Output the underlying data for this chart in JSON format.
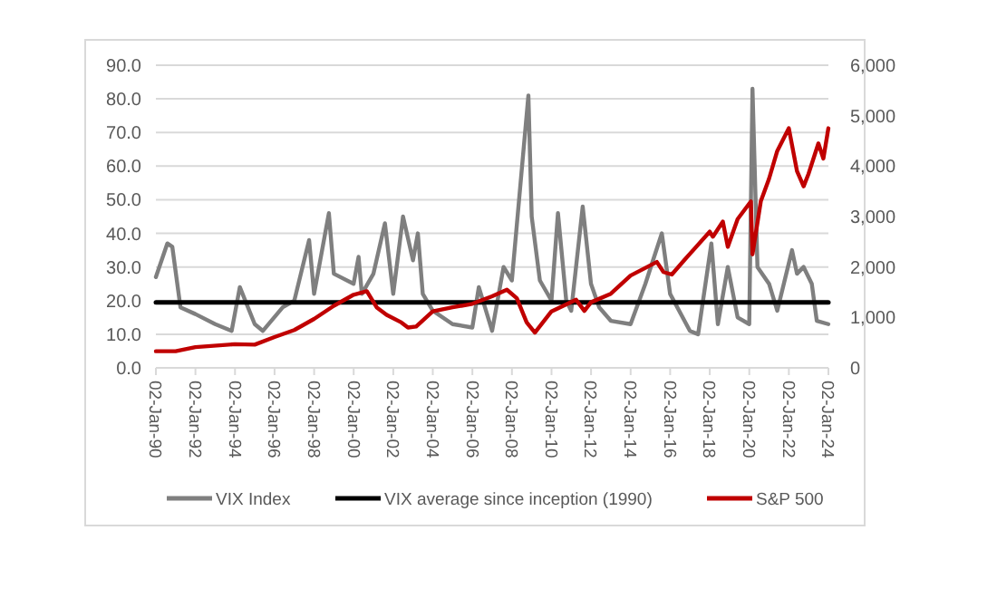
{
  "chart_data": {
    "type": "line",
    "x": [
      "1990-01-02",
      "1990-08",
      "1990-11",
      "1991-04",
      "1992-01",
      "1993-01",
      "1993-11",
      "1994-04",
      "1995-01",
      "1995-06",
      "1996-06",
      "1997-01",
      "1997-10",
      "1998-01",
      "1998-10",
      "1999-01",
      "2000-01",
      "2000-04",
      "2000-06",
      "2001-01",
      "2001-08",
      "2002-01",
      "2002-07",
      "2003-01",
      "2003-04",
      "2003-07",
      "2004-01",
      "2005-01",
      "2006-01",
      "2006-05",
      "2007-01",
      "2007-08",
      "2008-01",
      "2008-11",
      "2009-01",
      "2009-06",
      "2010-01",
      "2010-05",
      "2010-10",
      "2011-01",
      "2011-08",
      "2012-01",
      "2012-06",
      "2013-01",
      "2014-01",
      "2014-10",
      "2015-08",
      "2016-01",
      "2017-01",
      "2017-06",
      "2018-02",
      "2018-06",
      "2018-12",
      "2019-06",
      "2020-01",
      "2020-03",
      "2020-06",
      "2021-01",
      "2021-06",
      "2022-03",
      "2022-06",
      "2022-10",
      "2023-03",
      "2023-06",
      "2024-01"
    ],
    "series": [
      {
        "name": "VIX Index",
        "color": "#7f7f7f",
        "values": [
          27,
          37,
          36,
          18,
          16,
          13,
          11,
          24,
          13,
          11,
          18,
          20,
          38,
          22,
          46,
          28,
          25,
          33,
          22,
          28,
          43,
          22,
          45,
          32,
          40,
          22,
          17,
          13,
          12,
          24,
          11,
          30,
          26,
          81,
          45,
          26,
          20,
          46,
          20,
          17,
          48,
          25,
          18,
          14,
          13,
          25,
          40,
          22,
          11,
          10,
          37,
          13,
          30,
          15,
          13,
          83,
          30,
          25,
          17,
          35,
          28,
          30,
          25,
          14,
          13
        ]
      },
      {
        "name": "VIX average since inception (1990)",
        "color": "#000000",
        "x": [
          "1990-01-02",
          "2024-01-02"
        ],
        "values": [
          19.5,
          19.5
        ]
      },
      {
        "name": "S&P 500",
        "color": "#c00000",
        "axis": "y2",
        "x": [
          "1990-01-02",
          "1991-01",
          "1992-01",
          "1994-01",
          "1995-01",
          "1996-01",
          "1997-01",
          "1998-01",
          "1999-01",
          "2000-01",
          "2000-09",
          "2001-03",
          "2001-09",
          "2002-06",
          "2002-10",
          "2003-03",
          "2004-01",
          "2005-01",
          "2006-01",
          "2007-01",
          "2007-10",
          "2008-04",
          "2008-10",
          "2009-03",
          "2010-01",
          "2011-04",
          "2011-09",
          "2012-01",
          "2013-01",
          "2014-01",
          "2015-05",
          "2015-09",
          "2016-02",
          "2016-10",
          "2018-01",
          "2018-03",
          "2018-09",
          "2018-12",
          "2019-06",
          "2020-02",
          "2020-03",
          "2020-08",
          "2021-01",
          "2021-06",
          "2022-01",
          "2022-06",
          "2022-10",
          "2023-01",
          "2023-07",
          "2023-10",
          "2024-01"
        ],
        "values": [
          330,
          330,
          410,
          470,
          460,
          610,
          750,
          970,
          1230,
          1450,
          1520,
          1200,
          1050,
          900,
          800,
          820,
          1120,
          1200,
          1270,
          1420,
          1550,
          1380,
          900,
          700,
          1120,
          1350,
          1130,
          1300,
          1470,
          1830,
          2100,
          1900,
          1850,
          2150,
          2700,
          2600,
          2900,
          2400,
          2950,
          3300,
          2250,
          3300,
          3750,
          4300,
          4750,
          3900,
          3600,
          3850,
          4450,
          4150,
          4750
        ]
      }
    ],
    "xlim": [
      "1990-01-02",
      "2024-01-02"
    ],
    "xticks": [
      {
        "value": "1990-01-02",
        "label": "02-Jan-90"
      },
      {
        "value": "1992-01-02",
        "label": "02-Jan-92"
      },
      {
        "value": "1994-01-02",
        "label": "02-Jan-94"
      },
      {
        "value": "1996-01-02",
        "label": "02-Jan-96"
      },
      {
        "value": "1998-01-02",
        "label": "02-Jan-98"
      },
      {
        "value": "2000-01-02",
        "label": "02-Jan-00"
      },
      {
        "value": "2002-01-02",
        "label": "02-Jan-02"
      },
      {
        "value": "2004-01-02",
        "label": "02-Jan-04"
      },
      {
        "value": "2006-01-02",
        "label": "02-Jan-06"
      },
      {
        "value": "2008-01-02",
        "label": "02-Jan-08"
      },
      {
        "value": "2010-01-02",
        "label": "02-Jan-10"
      },
      {
        "value": "2012-01-02",
        "label": "02-Jan-12"
      },
      {
        "value": "2014-01-02",
        "label": "02-Jan-14"
      },
      {
        "value": "2016-01-02",
        "label": "02-Jan-16"
      },
      {
        "value": "2018-01-02",
        "label": "02-Jan-18"
      },
      {
        "value": "2020-01-02",
        "label": "02-Jan-20"
      },
      {
        "value": "2022-01-02",
        "label": "02-Jan-22"
      },
      {
        "value": "2024-01-02",
        "label": "02-Jan-24"
      }
    ],
    "ylim": [
      0,
      90
    ],
    "yticks": [
      {
        "value": 0,
        "label": "0.0"
      },
      {
        "value": 10,
        "label": "10.0"
      },
      {
        "value": 20,
        "label": "20.0"
      },
      {
        "value": 30,
        "label": "30.0"
      },
      {
        "value": 40,
        "label": "40.0"
      },
      {
        "value": 50,
        "label": "50.0"
      },
      {
        "value": 60,
        "label": "60.0"
      },
      {
        "value": 70,
        "label": "70.0"
      },
      {
        "value": 80,
        "label": "80.0"
      },
      {
        "value": 90,
        "label": "90.0"
      }
    ],
    "y2lim": [
      0,
      6000
    ],
    "y2ticks": [
      0,
      {
        "value": 1000,
        "label": "1,000"
      },
      {
        "value": 2000,
        "label": "2,000"
      },
      {
        "value": 3000,
        "label": "3,000"
      },
      {
        "value": 4000,
        "label": "4,000"
      },
      {
        "value": 5000,
        "label": "5,000"
      },
      {
        "value": 6000,
        "label": "6,000"
      }
    ],
    "grid": "y",
    "legend": "bottom",
    "marker": "none",
    "line_style": "solid"
  }
}
